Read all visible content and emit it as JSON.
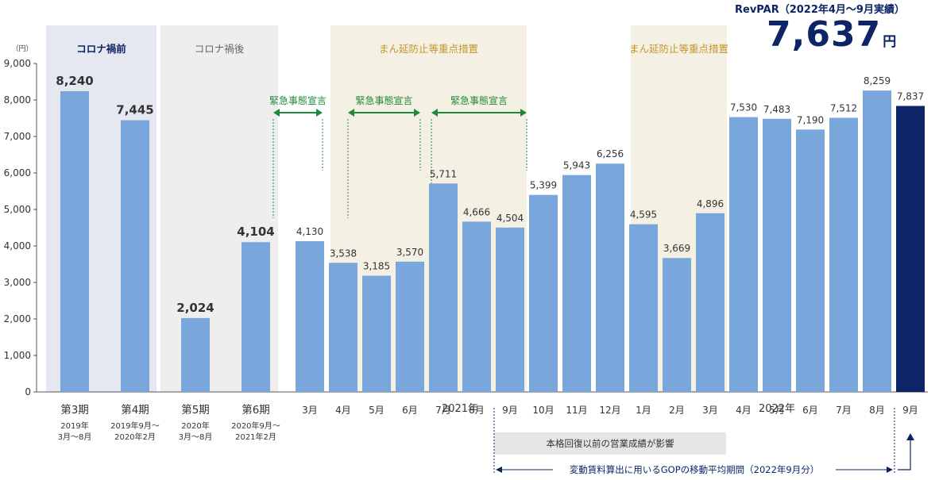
{
  "headline": {
    "label": "RevPAR（2022年4月〜9月実績）",
    "value": "7,637",
    "unit": "円"
  },
  "colors": {
    "bar": "#79a7db",
    "bar_highlight": "#0d2566",
    "precovid_band": "#e6e8f1",
    "postcovid_band": "#eeeeee",
    "mambou_band": "#f4f0e4",
    "emergency": "#1e8a3c",
    "mambou_text": "#c4952a",
    "navy": "#0d2566"
  },
  "chart_data": {
    "type": "bar",
    "y_unit_label": "（円）",
    "ylim": [
      0,
      9000
    ],
    "yticks": [
      "0",
      "1,000",
      "2,000",
      "3,000",
      "4,000",
      "5,000",
      "6,000",
      "7,000",
      "8,000",
      "9,000"
    ],
    "categories": [
      "第3期",
      "第4期",
      "第5期",
      "第6期",
      "3月",
      "4月",
      "5月",
      "6月",
      "7月",
      "8月",
      "9月",
      "10月",
      "11月",
      "12月",
      "1月",
      "2月",
      "3月",
      "4月",
      "5月",
      "6月",
      "7月",
      "8月",
      "9月"
    ],
    "category_sublabels": [
      [
        "2019年",
        "3月〜8月"
      ],
      [
        "2019年9月〜",
        "2020年2月"
      ],
      [
        "2020年",
        "3月〜8月"
      ],
      [
        "2020年9月〜",
        "2021年2月"
      ]
    ],
    "values": [
      8240,
      7445,
      2024,
      4104,
      4130,
      3538,
      3185,
      3570,
      5711,
      4666,
      4504,
      5399,
      5943,
      6256,
      4595,
      3669,
      4896,
      7530,
      7483,
      7190,
      7512,
      8259,
      7837
    ],
    "value_labels": [
      "8,240",
      "7,445",
      "2,024",
      "4,104",
      "4,130",
      "3,538",
      "3,185",
      "3,570",
      "5,711",
      "4,666",
      "4,504",
      "5,399",
      "5,943",
      "6,256",
      "4,595",
      "3,669",
      "4,896",
      "7,530",
      "7,483",
      "7,190",
      "7,512",
      "8,259",
      "7,837"
    ],
    "highlight_index": 22,
    "year_labels": [
      "2021年",
      "2022年"
    ],
    "bands": [
      {
        "label": "コロナ禍前",
        "style": "precovid",
        "from": 0,
        "to": 1
      },
      {
        "label": "コロナ禍後",
        "style": "postcovid",
        "from": 2,
        "to": 3
      },
      {
        "label": "まん延防止等重点措置",
        "style": "mambou",
        "from": 5,
        "to": 10
      },
      {
        "label": "まん延防止等重点措置",
        "style": "mambou",
        "from": 14,
        "to": 16
      }
    ],
    "emergency_periods": [
      {
        "label": "緊急事態宣言",
        "from": 3.5,
        "to": 5
      },
      {
        "label": "緊急事態宣言",
        "from": 5,
        "to": 7.5
      },
      {
        "label": "緊急事態宣言",
        "from": 8,
        "to": 10.5
      }
    ],
    "recovery_note": "本格回復以前の営業成績が影響",
    "gop_note": "変動賃料算出に用いるGOPの移動平均期間（2022年9月分）"
  }
}
